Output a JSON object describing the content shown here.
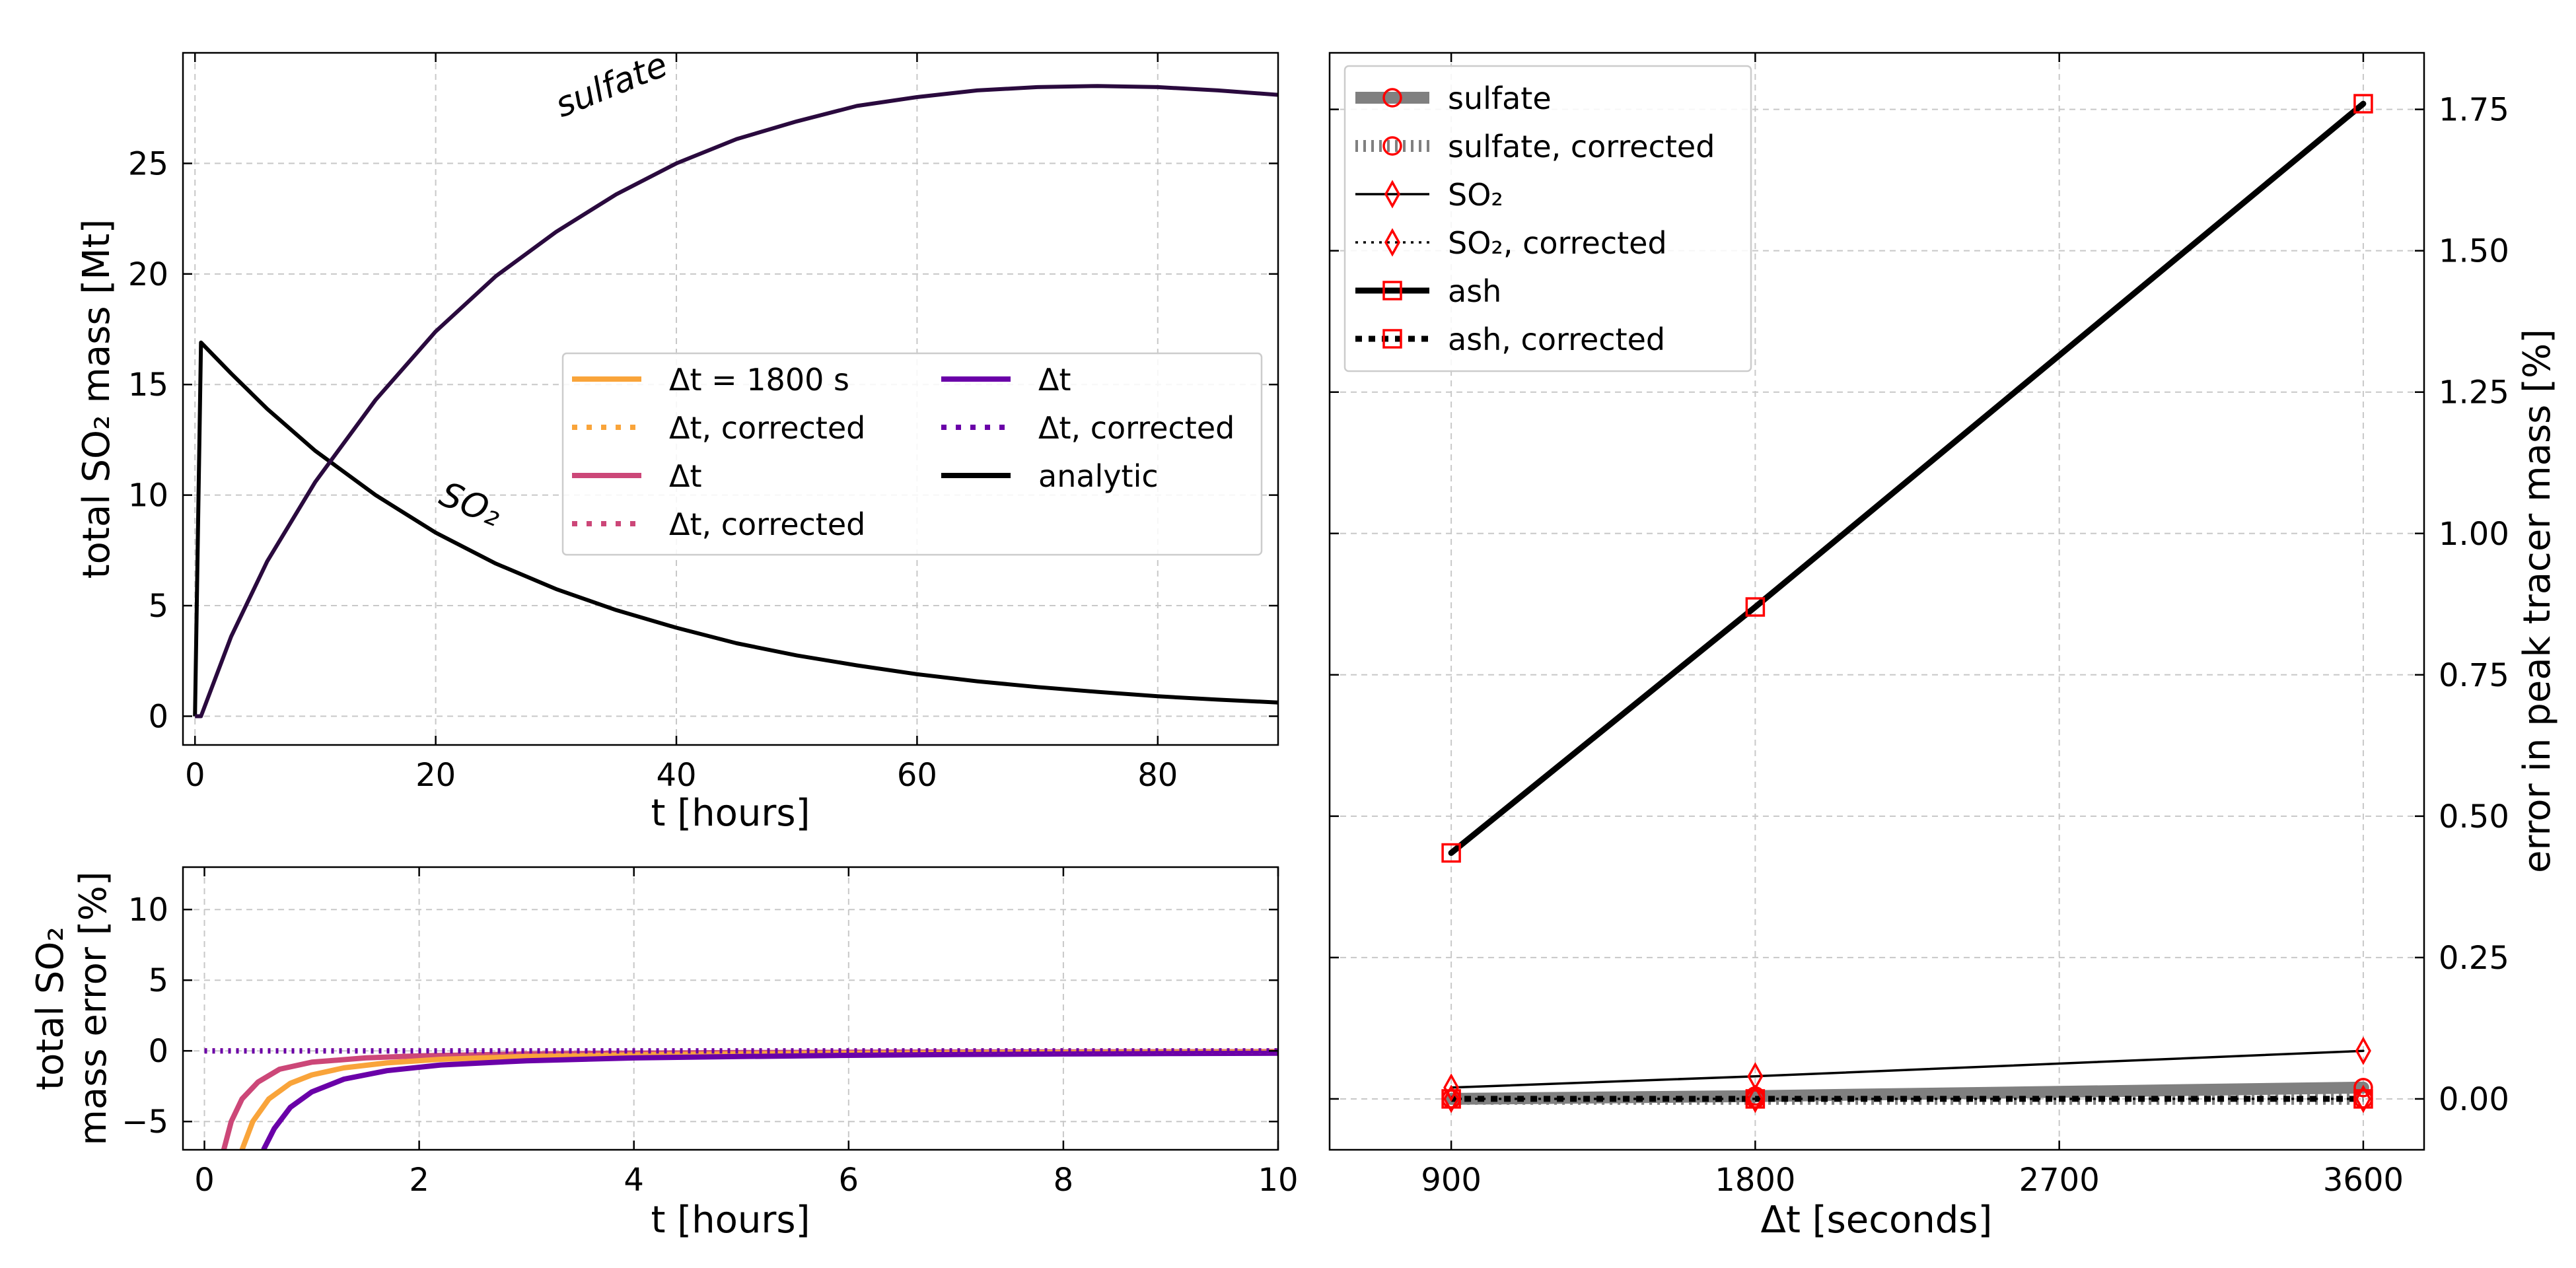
{
  "chart_data": [
    {
      "id": "top-left",
      "type": "line",
      "xlabel": "t [hours]",
      "ylabel": "total SO₂ mass [Mt]",
      "xlim": [
        -1,
        90
      ],
      "ylim": [
        -1.3,
        30
      ],
      "xticks": [
        0,
        20,
        40,
        60,
        80
      ],
      "yticks": [
        0,
        5,
        10,
        15,
        20,
        25
      ],
      "grid": true,
      "legend_position": "center-right",
      "legend": [
        {
          "label": "Δt = 1800 s",
          "color": "#f9a43a",
          "style": "solid"
        },
        {
          "label": "Δt, corrected",
          "color": "#f9a43a",
          "style": "dotted"
        },
        {
          "label": "Δt",
          "color": "#cc4778",
          "style": "solid"
        },
        {
          "label": "Δt, corrected",
          "color": "#cc4778",
          "style": "dotted"
        },
        {
          "label": "Δt",
          "color": "#6a00a8",
          "style": "solid"
        },
        {
          "label": "Δt, corrected",
          "color": "#6a00a8",
          "style": "dotted"
        },
        {
          "label": "analytic",
          "color": "#000000",
          "style": "solid"
        }
      ],
      "annotations": [
        {
          "text": "sulfate",
          "x": 35.5,
          "y": 28.5
        },
        {
          "text": "SO₂",
          "x": 23.5,
          "y": 8.8
        }
      ],
      "series": [
        {
          "name": "SO₂",
          "color": "#000000",
          "x": [
            0,
            0.5,
            3,
            6,
            10,
            15,
            20,
            25,
            30,
            35,
            40,
            45,
            50,
            55,
            60,
            65,
            70,
            75,
            80,
            85,
            90
          ],
          "y": [
            0,
            16.9,
            15.5,
            13.9,
            12.0,
            10.0,
            8.3,
            6.9,
            5.75,
            4.8,
            4.0,
            3.3,
            2.75,
            2.3,
            1.9,
            1.58,
            1.32,
            1.1,
            0.9,
            0.75,
            0.62
          ]
        },
        {
          "name": "sulfate",
          "color": "#2a0a3e",
          "x": [
            0,
            0.5,
            3,
            6,
            10,
            15,
            20,
            25,
            30,
            35,
            40,
            45,
            50,
            55,
            60,
            65,
            70,
            75,
            80,
            85,
            90
          ],
          "y": [
            0,
            0,
            3.6,
            7.0,
            10.6,
            14.3,
            17.4,
            19.9,
            21.9,
            23.6,
            25.0,
            26.1,
            26.9,
            27.6,
            28.0,
            28.3,
            28.45,
            28.5,
            28.45,
            28.3,
            28.1
          ]
        }
      ]
    },
    {
      "id": "bottom-left",
      "type": "line",
      "xlabel": "t [hours]",
      "ylabel_lines": [
        "total SO₂",
        "mass error [%]"
      ],
      "xlim": [
        -0.2,
        10
      ],
      "ylim": [
        -7,
        13
      ],
      "xticks": [
        0,
        2,
        4,
        6,
        8,
        10
      ],
      "yticks": [
        -5,
        0,
        5,
        10
      ],
      "grid": true,
      "series": [
        {
          "color": "#cc4778",
          "style": "solid",
          "x": [
            0.18,
            0.25,
            0.35,
            0.5,
            0.7,
            1.0,
            1.5,
            2,
            3,
            4,
            5,
            6,
            7,
            8,
            9,
            10
          ],
          "y": [
            -7,
            -5.0,
            -3.4,
            -2.2,
            -1.3,
            -0.8,
            -0.5,
            -0.35,
            -0.22,
            -0.16,
            -0.12,
            -0.1,
            -0.08,
            -0.07,
            -0.06,
            -0.05
          ]
        },
        {
          "color": "#f9a43a",
          "style": "solid",
          "x": [
            0.35,
            0.45,
            0.6,
            0.8,
            1.0,
            1.3,
            1.7,
            2.2,
            3,
            4,
            5,
            6,
            7,
            8,
            9,
            10
          ],
          "y": [
            -7,
            -5.0,
            -3.4,
            -2.3,
            -1.7,
            -1.2,
            -0.85,
            -0.6,
            -0.4,
            -0.28,
            -0.22,
            -0.18,
            -0.15,
            -0.12,
            -0.1,
            -0.09
          ]
        },
        {
          "color": "#6a00a8",
          "style": "solid",
          "x": [
            0.55,
            0.65,
            0.8,
            1.0,
            1.3,
            1.7,
            2.2,
            3,
            4,
            5,
            6,
            7,
            8,
            9,
            10
          ],
          "y": [
            -7,
            -5.5,
            -4.0,
            -2.9,
            -2.0,
            -1.4,
            -1.0,
            -0.7,
            -0.5,
            -0.4,
            -0.32,
            -0.26,
            -0.22,
            -0.19,
            -0.17
          ]
        },
        {
          "color": "#f9a43a",
          "style": "dotted",
          "x": [
            0,
            10
          ],
          "y": [
            0,
            0
          ]
        },
        {
          "color": "#cc4778",
          "style": "dotted",
          "x": [
            0,
            10
          ],
          "y": [
            0,
            0
          ]
        },
        {
          "color": "#6a00a8",
          "style": "dotted",
          "x": [
            0,
            10
          ],
          "y": [
            0,
            0
          ]
        }
      ]
    },
    {
      "id": "right",
      "type": "line",
      "xlabel": "Δt [seconds]",
      "ylabel": "error in peak tracer mass [%]",
      "yaxis_side": "right",
      "xlim": [
        540,
        3780
      ],
      "ylim": [
        -0.09,
        1.85
      ],
      "xticks": [
        900,
        1800,
        2700,
        3600
      ],
      "yticks": [
        0.0,
        0.25,
        0.5,
        0.75,
        1.0,
        1.25,
        1.5,
        1.75
      ],
      "ytick_labels": [
        "0.00",
        "0.25",
        "0.50",
        "0.75",
        "1.00",
        "1.25",
        "1.50",
        "1.75"
      ],
      "grid": true,
      "legend_position": "top-left",
      "series": [
        {
          "name": "sulfate",
          "line": "solid",
          "width": "wide",
          "line_color": "#808080",
          "marker": "circle",
          "x": [
            900,
            1800,
            3600
          ],
          "y": [
            0.0,
            0.005,
            0.02
          ]
        },
        {
          "name": "sulfate, corrected",
          "line": "dotted",
          "width": "wide",
          "line_color": "#808080",
          "marker": "circle",
          "x": [
            900,
            1800,
            3600
          ],
          "y": [
            0.0,
            0.0,
            0.0
          ]
        },
        {
          "name": "SO₂",
          "line": "solid",
          "width": "thin",
          "line_color": "#000000",
          "marker": "diamond",
          "x": [
            900,
            1800,
            3600
          ],
          "y": [
            0.02,
            0.04,
            0.085
          ]
        },
        {
          "name": "SO₂, corrected",
          "line": "dotted",
          "width": "thin",
          "line_color": "#000000",
          "marker": "diamond",
          "x": [
            900,
            1800,
            3600
          ],
          "y": [
            0.0,
            0.0,
            0.0
          ]
        },
        {
          "name": "ash",
          "line": "solid",
          "width": "thick",
          "line_color": "#000000",
          "marker": "square",
          "x": [
            900,
            1800,
            3600
          ],
          "y": [
            0.435,
            0.87,
            1.76
          ]
        },
        {
          "name": "ash, corrected",
          "line": "dotted",
          "width": "thick",
          "line_color": "#000000",
          "marker": "square",
          "x": [
            900,
            1800,
            3600
          ],
          "y": [
            0.0,
            0.0,
            0.0
          ]
        }
      ],
      "marker_color": "#ff0000"
    }
  ]
}
